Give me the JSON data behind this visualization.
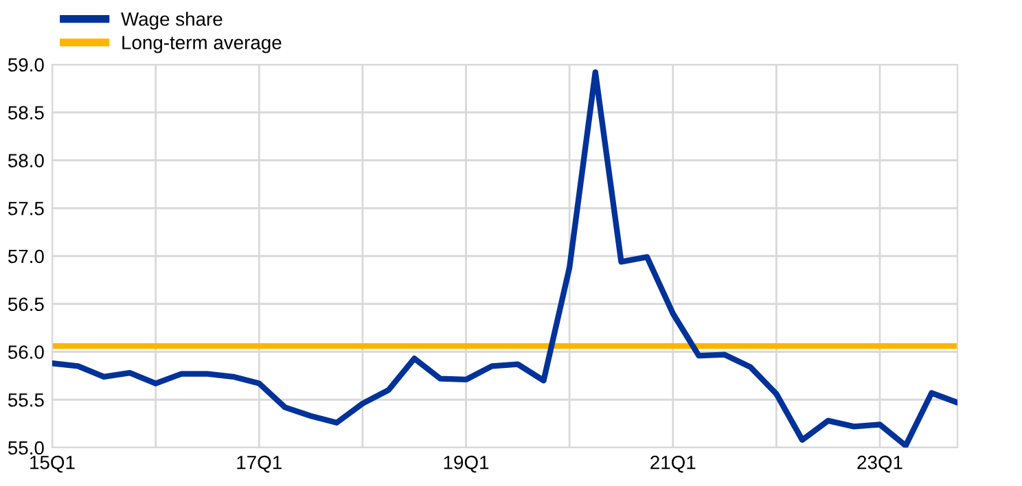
{
  "chart_data": {
    "type": "line",
    "categories": [
      "15Q1",
      null,
      null,
      null,
      null,
      null,
      null,
      null,
      "17Q1",
      null,
      null,
      null,
      null,
      null,
      null,
      null,
      "19Q1",
      null,
      null,
      null,
      null,
      null,
      null,
      null,
      "21Q1",
      null,
      null,
      null,
      null,
      null,
      null,
      null,
      "23Q1",
      null,
      null,
      null
    ],
    "series": [
      {
        "name": "Wage share",
        "color": "#003299",
        "values": [
          55.88,
          55.85,
          55.74,
          55.78,
          55.67,
          55.77,
          55.77,
          55.74,
          55.67,
          55.42,
          55.33,
          55.26,
          55.46,
          55.6,
          55.93,
          55.72,
          55.71,
          55.85,
          55.87,
          55.7,
          56.88,
          58.92,
          56.94,
          56.99,
          56.4,
          55.96,
          55.97,
          55.84,
          55.56,
          55.08,
          55.28,
          55.22,
          55.24,
          55.02,
          55.57,
          55.47
        ]
      }
    ],
    "ref_lines": [
      {
        "axis": "y",
        "value": 56.06,
        "label": "Long-term average",
        "color": "#ffb400"
      }
    ],
    "ylim": [
      55.0,
      59.0
    ],
    "yticks": [
      {
        "value": 55,
        "label": "55.0"
      },
      {
        "value": 55.5,
        "label": "55.5"
      },
      {
        "value": 56,
        "label": "56.0"
      },
      {
        "value": 56.5,
        "label": "56.5"
      },
      {
        "value": 57,
        "label": "57.0"
      },
      {
        "value": 57.5,
        "label": "57.5"
      },
      {
        "value": 58,
        "label": "58.0"
      },
      {
        "value": 58.5,
        "label": "58.5"
      },
      {
        "value": 59,
        "label": "59.0"
      }
    ],
    "grid": true,
    "legend": "top left",
    "marker": "none",
    "line_style": "solid"
  }
}
